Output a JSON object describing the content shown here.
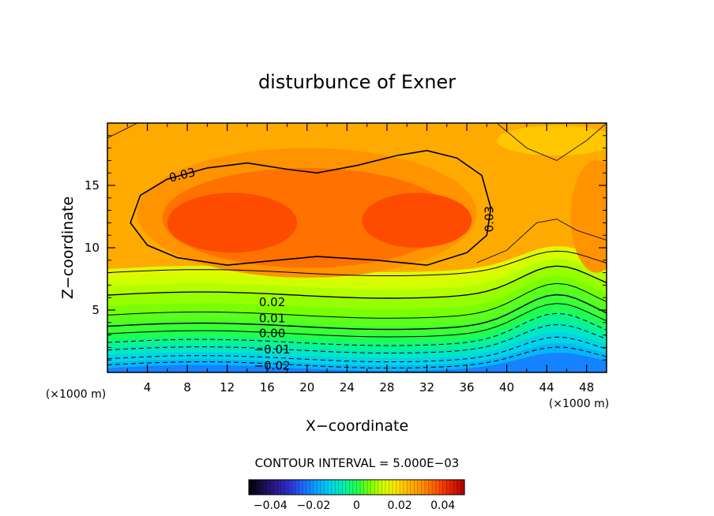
{
  "chart_data": {
    "type": "heatmap",
    "title": "disturbunce of Exner",
    "xlabel": "X−coordinate",
    "ylabel": "Z−coordinate",
    "x_unit_left": "(×1000 m)",
    "x_unit_right": "(×1000 m)",
    "xlim": [
      0,
      50
    ],
    "ylim": [
      0,
      20
    ],
    "x_ticks": [
      4,
      8,
      12,
      16,
      20,
      24,
      28,
      32,
      36,
      40,
      44,
      48
    ],
    "x_tick_labels": [
      "4",
      "8",
      "12",
      "16",
      "20",
      "24",
      "28",
      "32",
      "36",
      "40",
      "44",
      "48"
    ],
    "y_ticks": [
      5,
      10,
      15
    ],
    "y_tick_labels": [
      "5",
      "10",
      "15"
    ],
    "contour_interval_text": "CONTOUR INTERVAL = 5.000E−03",
    "contour_labels": [
      "0.03",
      "0.03",
      "0.02",
      "0.01",
      "0.00",
      "−0.01",
      "−0.02"
    ],
    "colorbar": {
      "range": [
        -0.05,
        0.05
      ],
      "tick_labels": [
        "−0.04",
        "−0.02",
        "0",
        "0.02",
        "0.04"
      ],
      "colors": [
        "#000000",
        "#1a0d4d",
        "#2a1a8a",
        "#2d2fd0",
        "#1f66ff",
        "#0aa0ff",
        "#00d2ee",
        "#00f0b0",
        "#20ff50",
        "#7cff00",
        "#d8ff00",
        "#ffe000",
        "#ffb000",
        "#ff8c00",
        "#ff5000",
        "#e02000",
        "#b00000",
        "#ffffff"
      ]
    }
  }
}
